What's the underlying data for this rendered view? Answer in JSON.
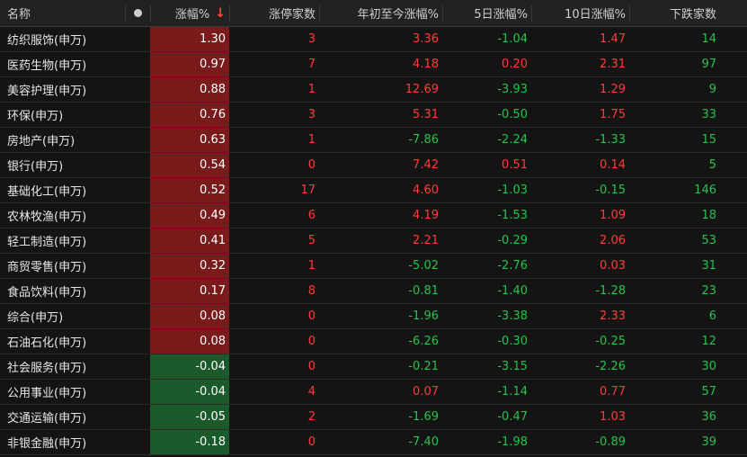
{
  "header": {
    "name": "名称",
    "change": "涨幅%",
    "sort_arrow": "↓",
    "limit_up": "涨停家数",
    "ytd": "年初至今涨幅%",
    "d5": "5日涨幅%",
    "d10": "10日涨幅%",
    "decliners": "下跌家数"
  },
  "colors": {
    "up": "#ff3b3b",
    "down": "#27c24c",
    "up_cell_bg": "#7a1a1a",
    "down_cell_bg": "#1b5a2a"
  },
  "rows": [
    {
      "name": "纺织服饰(申万)",
      "change": "1.30",
      "limit_up": "3",
      "ytd": "3.36",
      "d5": "-1.04",
      "d10": "1.47",
      "decliners": "14"
    },
    {
      "name": "医药生物(申万)",
      "change": "0.97",
      "limit_up": "7",
      "ytd": "4.18",
      "d5": "0.20",
      "d10": "2.31",
      "decliners": "97"
    },
    {
      "name": "美容护理(申万)",
      "change": "0.88",
      "limit_up": "1",
      "ytd": "12.69",
      "d5": "-3.93",
      "d10": "1.29",
      "decliners": "9"
    },
    {
      "name": "环保(申万)",
      "change": "0.76",
      "limit_up": "3",
      "ytd": "5.31",
      "d5": "-0.50",
      "d10": "1.75",
      "decliners": "33"
    },
    {
      "name": "房地产(申万)",
      "change": "0.63",
      "limit_up": "1",
      "ytd": "-7.86",
      "d5": "-2.24",
      "d10": "-1.33",
      "decliners": "15"
    },
    {
      "name": "银行(申万)",
      "change": "0.54",
      "limit_up": "0",
      "ytd": "7.42",
      "d5": "0.51",
      "d10": "0.14",
      "decliners": "5"
    },
    {
      "name": "基础化工(申万)",
      "change": "0.52",
      "limit_up": "17",
      "ytd": "4.60",
      "d5": "-1.03",
      "d10": "-0.15",
      "decliners": "146"
    },
    {
      "name": "农林牧渔(申万)",
      "change": "0.49",
      "limit_up": "6",
      "ytd": "4.19",
      "d5": "-1.53",
      "d10": "1.09",
      "decliners": "18"
    },
    {
      "name": "轻工制造(申万)",
      "change": "0.41",
      "limit_up": "5",
      "ytd": "2.21",
      "d5": "-0.29",
      "d10": "2.06",
      "decliners": "53"
    },
    {
      "name": "商贸零售(申万)",
      "change": "0.32",
      "limit_up": "1",
      "ytd": "-5.02",
      "d5": "-2.76",
      "d10": "0.03",
      "decliners": "31"
    },
    {
      "name": "食品饮料(申万)",
      "change": "0.17",
      "limit_up": "8",
      "ytd": "-0.81",
      "d5": "-1.40",
      "d10": "-1.28",
      "decliners": "23"
    },
    {
      "name": "综合(申万)",
      "change": "0.08",
      "limit_up": "0",
      "ytd": "-1.96",
      "d5": "-3.38",
      "d10": "2.33",
      "decliners": "6"
    },
    {
      "name": "石油石化(申万)",
      "change": "0.08",
      "limit_up": "0",
      "ytd": "-6.26",
      "d5": "-0.30",
      "d10": "-0.25",
      "decliners": "12"
    },
    {
      "name": "社会服务(申万)",
      "change": "-0.04",
      "limit_up": "0",
      "ytd": "-0.21",
      "d5": "-3.15",
      "d10": "-2.26",
      "decliners": "30"
    },
    {
      "name": "公用事业(申万)",
      "change": "-0.04",
      "limit_up": "4",
      "ytd": "0.07",
      "d5": "-1.14",
      "d10": "0.77",
      "decliners": "57"
    },
    {
      "name": "交通运输(申万)",
      "change": "-0.05",
      "limit_up": "2",
      "ytd": "-1.69",
      "d5": "-0.47",
      "d10": "1.03",
      "decliners": "36"
    },
    {
      "name": "非银金融(申万)",
      "change": "-0.18",
      "limit_up": "0",
      "ytd": "-7.40",
      "d5": "-1.98",
      "d10": "-0.89",
      "decliners": "39"
    }
  ]
}
